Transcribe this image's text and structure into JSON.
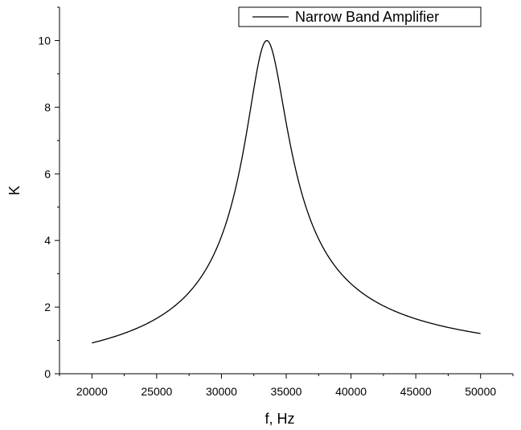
{
  "chart_data": {
    "type": "line",
    "xlabel": "f, Hz",
    "ylabel": "K",
    "xlim": [
      17500,
      52500
    ],
    "ylim": [
      0,
      11
    ],
    "x_ticks": [
      20000,
      25000,
      30000,
      35000,
      40000,
      45000,
      50000
    ],
    "y_ticks": [
      0,
      2,
      4,
      6,
      8,
      10
    ],
    "legend_position": "top-right",
    "grid": false,
    "series": [
      {
        "name": "Narrow Band Amplifier",
        "color": "#000000",
        "resonance": {
          "f0": 33500,
          "peak": 10.0,
          "Q": 10
        },
        "x": [
          20000,
          22000,
          24000,
          26000,
          28000,
          29000,
          30000,
          31000,
          32000,
          32500,
          33000,
          33500,
          34000,
          34500,
          35000,
          36000,
          37000,
          38000,
          40000,
          42000,
          44000,
          46000,
          48000,
          50000
        ],
        "values": [
          0.91,
          1.14,
          1.45,
          1.88,
          2.62,
          3.18,
          4.0,
          5.25,
          7.27,
          8.48,
          9.61,
          10.0,
          9.65,
          8.71,
          7.59,
          5.66,
          4.35,
          3.52,
          2.59,
          2.07,
          1.74,
          1.51,
          1.34,
          1.21
        ]
      }
    ]
  }
}
